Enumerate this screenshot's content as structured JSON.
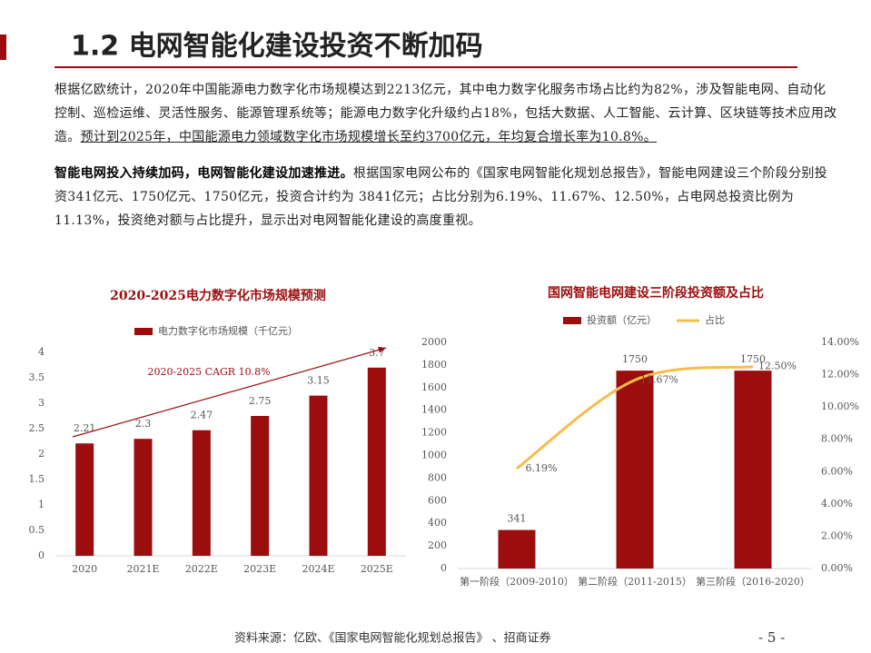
{
  "header": {
    "title": "1.2 电网智能化建设投资不断加码"
  },
  "paragraphs": [
    {
      "text": "根据亿欧统计，2020年中国能源电力数字化市场规模达到2213亿元，其中电力数字化服务市场占比约为82%，涉及智能电网、自动化控制、巡检运维、灵活性服务、能源管理系统等；能源电力数字化升级约占18%，包括大数据、人工智能、云计算、区块链等技术应用改造。",
      "underlined": "预计到2025年，中国能源电力领域数字化市场规模增长至约3700亿元，年均复合增长率为10.8%。"
    },
    {
      "bold": "智能电网投入持续加码，电网智能化建设加速推进。",
      "text": "根据国家电网公布的《国家电网智能化规划总报告》，智能电网建设三个阶段分别投资341亿元、1750亿元、1750亿元，投资合计约为 3841亿元；占比分别为6.19%、11.67%、12.50%，占电网总投资比例为11.13%，投资绝对额与占比提升，显示出对电网智能化建设的高度重视。"
    }
  ],
  "chart_data": [
    {
      "type": "bar",
      "title": "2020-2025电力数字化市场规模预测",
      "categories": [
        "2020",
        "2021E",
        "2022E",
        "2023E",
        "2024E",
        "2025E"
      ],
      "series": [
        {
          "name": "电力数字化市场规模（千亿元）",
          "color": "#9c0d0d",
          "values": [
            2.21,
            2.3,
            2.47,
            2.75,
            3.15,
            3.7
          ]
        }
      ],
      "ylim": [
        0,
        4
      ],
      "yticks": [
        0,
        0.5,
        1,
        1.5,
        2,
        2.5,
        3,
        3.5,
        4
      ],
      "annotation": "2020-2025 CAGR 10.8%"
    },
    {
      "type": "bar",
      "title": "国网智能电网建设三阶段投资额及占比",
      "categories": [
        "第一阶段（2009-2010）",
        "第二阶段（2011-2015）",
        "第三阶段（2016-2020）"
      ],
      "series": [
        {
          "name": "投资额（亿元）",
          "type": "bar",
          "color": "#9c0d0d",
          "values": [
            341,
            1750,
            1750
          ]
        },
        {
          "name": "占比",
          "type": "line",
          "axis": "y2",
          "color": "#f7bd4a",
          "values": [
            6.19,
            11.67,
            12.5
          ],
          "value_labels": [
            "6.19%",
            "11.67%",
            "12.50%"
          ]
        }
      ],
      "ylim": [
        0,
        2000
      ],
      "yticks": [
        0,
        200,
        400,
        600,
        800,
        1000,
        1200,
        1400,
        1600,
        1800,
        2000
      ],
      "y2lim": [
        0,
        14
      ],
      "y2ticks": [
        {
          "value": 0,
          "label": "0.00%"
        },
        {
          "value": 2,
          "label": "2.00%"
        },
        {
          "value": 4,
          "label": "4.00%"
        },
        {
          "value": 6,
          "label": "6.00%"
        },
        {
          "value": 8,
          "label": "8.00%"
        },
        {
          "value": 10,
          "label": "10.00%"
        },
        {
          "value": 12,
          "label": "12.00%"
        },
        {
          "value": 14,
          "label": "14.00%"
        }
      ]
    }
  ],
  "footer": {
    "source": "资料来源：亿欧、《国家电网智能化规划总报告》 、招商证券",
    "page": "- 5 -"
  }
}
